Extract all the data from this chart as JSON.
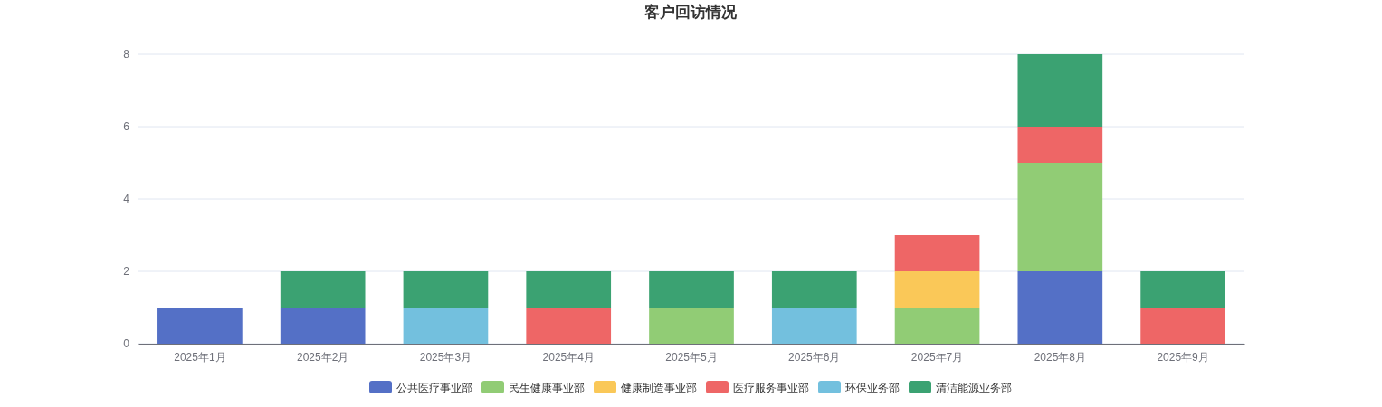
{
  "chart_data": {
    "type": "bar",
    "title": "客户回访情况",
    "stacked": true,
    "grid": "y",
    "legend": "bottom",
    "categories": [
      "2025年1月",
      "2025年2月",
      "2025年3月",
      "2025年4月",
      "2025年5月",
      "2025年6月",
      "2025年7月",
      "2025年8月",
      "2025年9月"
    ],
    "ylim": [
      0,
      8
    ],
    "yticks": [
      0,
      2,
      4,
      6,
      8
    ],
    "series": [
      {
        "name": "公共医疗事业部",
        "color": "#5470c6",
        "values": [
          1,
          1,
          null,
          null,
          null,
          null,
          null,
          2,
          null
        ]
      },
      {
        "name": "民生健康事业部",
        "color": "#91cc75",
        "values": [
          null,
          null,
          null,
          null,
          1,
          null,
          1,
          3,
          null
        ]
      },
      {
        "name": "健康制造事业部",
        "color": "#fac858",
        "values": [
          null,
          null,
          null,
          null,
          null,
          null,
          1,
          null,
          null
        ]
      },
      {
        "name": "医疗服务事业部",
        "color": "#ee6666",
        "values": [
          null,
          null,
          null,
          1,
          null,
          null,
          1,
          1,
          1
        ]
      },
      {
        "name": "环保业务部",
        "color": "#73c0de",
        "values": [
          null,
          null,
          1,
          null,
          null,
          1,
          null,
          null,
          null
        ]
      },
      {
        "name": "清洁能源业务部",
        "color": "#3ba272",
        "values": [
          null,
          1,
          1,
          1,
          1,
          1,
          null,
          2,
          1
        ]
      }
    ]
  }
}
